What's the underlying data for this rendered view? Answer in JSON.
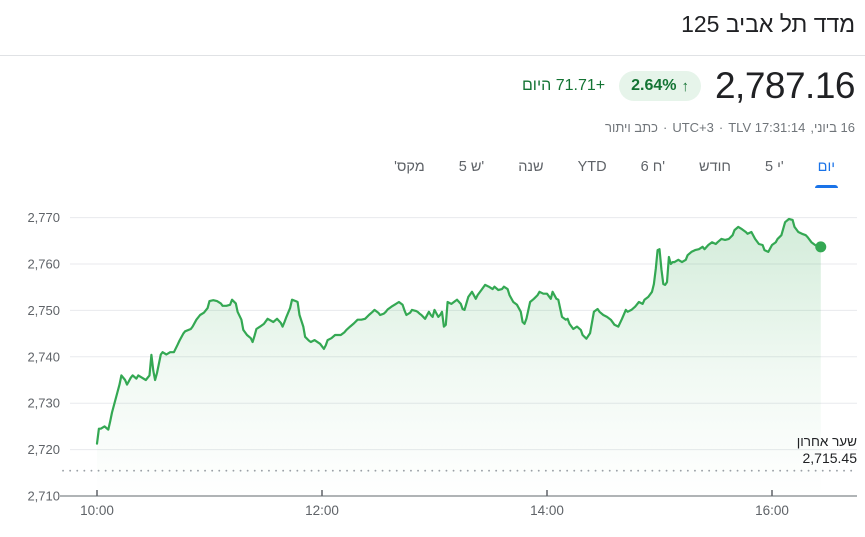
{
  "header": {
    "title": "מדד תל אביב 125"
  },
  "quote": {
    "price": "2,787.16",
    "change_percent": "2.64%",
    "up_arrow": "↑",
    "change_today": "+71.71 היום",
    "meta": {
      "disclaimer": "כתב ויתור",
      "dot": "·",
      "utc": "UTC+3",
      "exchange_time": "TLV 17:31:14",
      "date": "16 ביוני,"
    },
    "colors": {
      "positive_text": "#137333",
      "positive_bg": "#e6f4ea"
    }
  },
  "tabs": {
    "active_color": "#1a73e8",
    "items": [
      {
        "label": "יום",
        "dir": "rtl",
        "active": true
      },
      {
        "label": "5 י'",
        "dir": "ltr",
        "active": false
      },
      {
        "label": "חודש",
        "dir": "rtl",
        "active": false
      },
      {
        "label": "6 ח'",
        "dir": "ltr",
        "active": false
      },
      {
        "label": "YTD",
        "dir": "ltr",
        "active": false
      },
      {
        "label": "שנה",
        "dir": "rtl",
        "active": false
      },
      {
        "label": "5 ש'",
        "dir": "ltr",
        "active": false
      },
      {
        "label": "מקס'",
        "dir": "rtl",
        "active": false
      }
    ]
  },
  "chart_data": {
    "type": "area",
    "title": "מדד תל אביב 125 — יום",
    "line_color": "#34a853",
    "grid_color": "#e8eaed",
    "axis_color": "#80868b",
    "tick_label_color": "#5f6368",
    "legend_position": "none",
    "grid": true,
    "ylim": [
      2710,
      2775
    ],
    "y_ticks": [
      {
        "v": 2770,
        "label": "2,770"
      },
      {
        "v": 2760,
        "label": "2,760"
      },
      {
        "v": 2750,
        "label": "2,750"
      },
      {
        "v": 2740,
        "label": "2,740"
      },
      {
        "v": 2730,
        "label": "2,730"
      },
      {
        "v": 2720,
        "label": "2,720"
      },
      {
        "v": 2710,
        "label": "2,710"
      }
    ],
    "x_ticks": [
      {
        "m": 0,
        "label": "10:00"
      },
      {
        "m": 120,
        "label": "12:00"
      },
      {
        "m": 240,
        "label": "14:00"
      },
      {
        "m": 360,
        "label": "16:00"
      }
    ],
    "prev_close": {
      "label": "שער אחרון",
      "value_label": "2,715.45",
      "value": 2715.45
    },
    "series_name": "מדד תל אביב 125",
    "x_unit": "minutes after 10:00",
    "points": [
      [
        0,
        2721.3
      ],
      [
        1,
        2724.5
      ],
      [
        2,
        2724.5
      ],
      [
        4,
        2725.0
      ],
      [
        6,
        2724.3
      ],
      [
        7,
        2726.0
      ],
      [
        8,
        2728.0
      ],
      [
        11,
        2732.5
      ],
      [
        12,
        2734.0
      ],
      [
        13,
        2736.0
      ],
      [
        15,
        2735.0
      ],
      [
        16,
        2734.0
      ],
      [
        18,
        2735.5
      ],
      [
        19,
        2736.0
      ],
      [
        21,
        2735.3
      ],
      [
        22,
        2736.0
      ],
      [
        24,
        2735.5
      ],
      [
        26,
        2735.0
      ],
      [
        28,
        2736.0
      ],
      [
        29,
        2740.4
      ],
      [
        30,
        2737.0
      ],
      [
        31,
        2735.0
      ],
      [
        32,
        2736.5
      ],
      [
        34,
        2740.5
      ],
      [
        35,
        2741.0
      ],
      [
        37,
        2740.5
      ],
      [
        39,
        2741.0
      ],
      [
        41,
        2741.0
      ],
      [
        43,
        2742.6
      ],
      [
        44,
        2743.5
      ],
      [
        46,
        2745.0
      ],
      [
        47,
        2745.5
      ],
      [
        50,
        2746.0
      ],
      [
        51,
        2746.5
      ],
      [
        53,
        2748.0
      ],
      [
        55,
        2749.0
      ],
      [
        57,
        2749.5
      ],
      [
        59,
        2750.5
      ],
      [
        60,
        2752.0
      ],
      [
        62,
        2752.2
      ],
      [
        64,
        2752.0
      ],
      [
        66,
        2751.5
      ],
      [
        67,
        2751.0
      ],
      [
        69,
        2751.0
      ],
      [
        71,
        2751.2
      ],
      [
        72,
        2752.3
      ],
      [
        74,
        2751.5
      ],
      [
        75,
        2749.7
      ],
      [
        77,
        2748.0
      ],
      [
        78,
        2745.8
      ],
      [
        80,
        2744.7
      ],
      [
        82,
        2744.0
      ],
      [
        83,
        2743.2
      ],
      [
        84,
        2744.5
      ],
      [
        85,
        2746.0
      ],
      [
        87,
        2746.5
      ],
      [
        89,
        2747.1
      ],
      [
        91,
        2748.2
      ],
      [
        94,
        2747.5
      ],
      [
        96,
        2748.2
      ],
      [
        98,
        2747.3
      ],
      [
        99,
        2746.5
      ],
      [
        100,
        2747.5
      ],
      [
        101,
        2748.6
      ],
      [
        103,
        2750.5
      ],
      [
        104,
        2752.3
      ],
      [
        106,
        2752.0
      ],
      [
        107,
        2751.8
      ],
      [
        108,
        2749.0
      ],
      [
        110,
        2746.5
      ],
      [
        111,
        2744.3
      ],
      [
        113,
        2743.5
      ],
      [
        114,
        2743.2
      ],
      [
        116,
        2743.6
      ],
      [
        119,
        2742.8
      ],
      [
        121,
        2741.7
      ],
      [
        122,
        2742.5
      ],
      [
        123,
        2743.6
      ],
      [
        125,
        2744.0
      ],
      [
        127,
        2744.7
      ],
      [
        130,
        2744.7
      ],
      [
        132,
        2745.3
      ],
      [
        133,
        2745.8
      ],
      [
        135,
        2746.5
      ],
      [
        137,
        2747.2
      ],
      [
        139,
        2748.0
      ],
      [
        141,
        2748.0
      ],
      [
        143,
        2748.2
      ],
      [
        145,
        2749.0
      ],
      [
        147,
        2749.7
      ],
      [
        148,
        2750.1
      ],
      [
        150,
        2749.5
      ],
      [
        151,
        2749.0
      ],
      [
        153,
        2749.3
      ],
      [
        154,
        2749.7
      ],
      [
        155,
        2750.2
      ],
      [
        157,
        2750.8
      ],
      [
        159,
        2751.3
      ],
      [
        161,
        2751.8
      ],
      [
        163,
        2751.2
      ],
      [
        164,
        2750.0
      ],
      [
        165,
        2749.0
      ],
      [
        167,
        2749.5
      ],
      [
        168,
        2750.1
      ],
      [
        170,
        2749.9
      ],
      [
        171,
        2749.7
      ],
      [
        172,
        2749.3
      ],
      [
        173,
        2749.0
      ],
      [
        175,
        2748.2
      ],
      [
        177,
        2749.7
      ],
      [
        178,
        2749.0
      ],
      [
        179,
        2748.6
      ],
      [
        180,
        2750.1
      ],
      [
        182,
        2748.6
      ],
      [
        183,
        2749.0
      ],
      [
        184,
        2749.7
      ],
      [
        185,
        2746.5
      ],
      [
        186,
        2746.9
      ],
      [
        187,
        2751.8
      ],
      [
        188,
        2751.6
      ],
      [
        189,
        2751.4
      ],
      [
        191,
        2752.0
      ],
      [
        192,
        2752.3
      ],
      [
        194,
        2751.4
      ],
      [
        195,
        2750.3
      ],
      [
        196,
        2750.1
      ],
      [
        198,
        2752.9
      ],
      [
        200,
        2754.0
      ],
      [
        202,
        2752.5
      ],
      [
        203,
        2753.3
      ],
      [
        205,
        2754.4
      ],
      [
        207,
        2755.5
      ],
      [
        209,
        2755.1
      ],
      [
        211,
        2754.6
      ],
      [
        212,
        2755.1
      ],
      [
        214,
        2754.4
      ],
      [
        216,
        2754.6
      ],
      [
        217,
        2755.1
      ],
      [
        219,
        2754.6
      ],
      [
        220,
        2753.3
      ],
      [
        222,
        2751.8
      ],
      [
        224,
        2751.2
      ],
      [
        226,
        2749.7
      ],
      [
        227,
        2747.5
      ],
      [
        228,
        2747.1
      ],
      [
        229,
        2748.2
      ],
      [
        231,
        2751.8
      ],
      [
        233,
        2752.5
      ],
      [
        235,
        2753.3
      ],
      [
        236,
        2754.0
      ],
      [
        238,
        2753.6
      ],
      [
        240,
        2753.6
      ],
      [
        242,
        2752.5
      ],
      [
        243,
        2754.0
      ],
      [
        245,
        2752.5
      ],
      [
        246,
        2752.3
      ],
      [
        248,
        2748.6
      ],
      [
        250,
        2748.0
      ],
      [
        251,
        2748.2
      ],
      [
        252,
        2747.1
      ],
      [
        254,
        2746.0
      ],
      [
        256,
        2746.5
      ],
      [
        258,
        2745.8
      ],
      [
        259,
        2744.7
      ],
      [
        261,
        2743.9
      ],
      [
        263,
        2745.1
      ],
      [
        265,
        2749.7
      ],
      [
        267,
        2750.3
      ],
      [
        268,
        2749.7
      ],
      [
        270,
        2749.0
      ],
      [
        272,
        2748.6
      ],
      [
        274,
        2748.0
      ],
      [
        276,
        2746.9
      ],
      [
        278,
        2746.5
      ],
      [
        280,
        2748.2
      ],
      [
        282,
        2750.1
      ],
      [
        283,
        2749.7
      ],
      [
        285,
        2750.1
      ],
      [
        287,
        2750.8
      ],
      [
        289,
        2751.8
      ],
      [
        291,
        2751.4
      ],
      [
        292,
        2752.3
      ],
      [
        294,
        2752.9
      ],
      [
        296,
        2754.0
      ],
      [
        297,
        2755.7
      ],
      [
        298,
        2759.0
      ],
      [
        299,
        2763.0
      ],
      [
        300,
        2763.2
      ],
      [
        301,
        2758.9
      ],
      [
        302,
        2755.7
      ],
      [
        303,
        2755.5
      ],
      [
        304,
        2756.1
      ],
      [
        305,
        2761.5
      ],
      [
        306,
        2760.0
      ],
      [
        307,
        2760.4
      ],
      [
        308,
        2760.4
      ],
      [
        310,
        2760.9
      ],
      [
        312,
        2760.4
      ],
      [
        314,
        2760.9
      ],
      [
        315,
        2761.9
      ],
      [
        317,
        2762.6
      ],
      [
        319,
        2763.0
      ],
      [
        321,
        2763.2
      ],
      [
        323,
        2763.7
      ],
      [
        324,
        2763.2
      ],
      [
        326,
        2764.1
      ],
      [
        328,
        2764.7
      ],
      [
        330,
        2764.3
      ],
      [
        331,
        2764.7
      ],
      [
        333,
        2765.4
      ],
      [
        335,
        2765.2
      ],
      [
        337,
        2765.4
      ],
      [
        339,
        2766.2
      ],
      [
        340,
        2767.3
      ],
      [
        342,
        2768.0
      ],
      [
        344,
        2767.5
      ],
      [
        346,
        2766.9
      ],
      [
        347,
        2766.5
      ],
      [
        349,
        2766.9
      ],
      [
        351,
        2765.4
      ],
      [
        353,
        2764.3
      ],
      [
        355,
        2764.1
      ],
      [
        356,
        2763.0
      ],
      [
        358,
        2762.6
      ],
      [
        360,
        2764.1
      ],
      [
        362,
        2764.7
      ],
      [
        363,
        2765.4
      ],
      [
        365,
        2766.2
      ],
      [
        367,
        2769.0
      ],
      [
        369,
        2769.7
      ],
      [
        371,
        2769.5
      ],
      [
        372,
        2768.0
      ],
      [
        374,
        2766.9
      ],
      [
        376,
        2766.5
      ],
      [
        378,
        2766.2
      ],
      [
        379,
        2765.8
      ],
      [
        381,
        2764.7
      ],
      [
        383,
        2764.1
      ],
      [
        385,
        2763.7
      ],
      [
        386,
        2763.7
      ]
    ]
  }
}
